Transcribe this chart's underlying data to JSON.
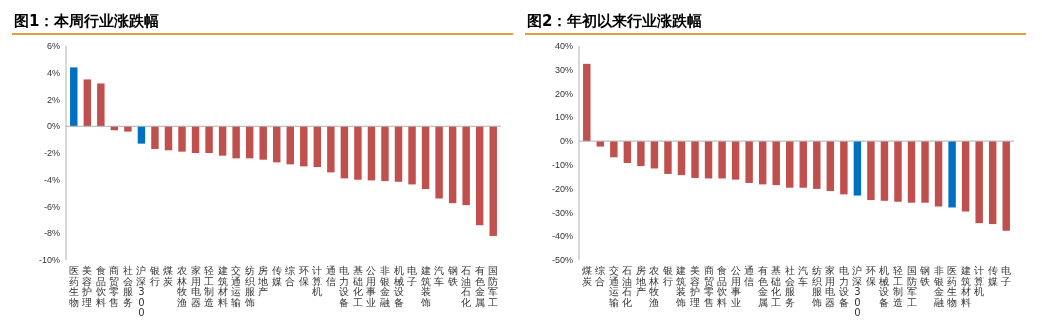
{
  "chart_data": [
    {
      "type": "bar",
      "title": "图1：本周行业涨跌幅",
      "categories": [
        "医药生物",
        "美容护理",
        "食品饮料",
        "商贸零售",
        "社会服务",
        "沪深300",
        "银行",
        "煤炭",
        "农林牧渔",
        "家用电器",
        "轻工制造",
        "建筑材料",
        "交通运输",
        "纺织服饰",
        "房地产",
        "传媒",
        "综合",
        "环保",
        "计算机",
        "通信",
        "电力设备",
        "基础化工",
        "公用事业",
        "非银金融",
        "机械设备",
        "电子",
        "建筑装饰",
        "汽车",
        "钢铁",
        "石油石化",
        "有色金属",
        "国防军工"
      ],
      "values": [
        4.4,
        3.5,
        3.2,
        -0.3,
        -0.4,
        -1.3,
        -1.7,
        -1.8,
        -1.9,
        -2.0,
        -2.0,
        -2.2,
        -2.4,
        -2.4,
        -2.5,
        -2.7,
        -2.85,
        -3.0,
        -3.05,
        -3.45,
        -3.9,
        -4.0,
        -4.05,
        -4.1,
        -4.15,
        -4.35,
        -4.7,
        -5.4,
        -5.75,
        -5.9,
        -7.4,
        -8.2
      ],
      "colors": [
        "#0070c0",
        "#c0504d",
        "#c0504d",
        "#c0504d",
        "#c0504d",
        "#0070c0",
        "#c0504d",
        "#c0504d",
        "#c0504d",
        "#c0504d",
        "#c0504d",
        "#c0504d",
        "#c0504d",
        "#c0504d",
        "#c0504d",
        "#c0504d",
        "#c0504d",
        "#c0504d",
        "#c0504d",
        "#c0504d",
        "#c0504d",
        "#c0504d",
        "#c0504d",
        "#c0504d",
        "#c0504d",
        "#c0504d",
        "#c0504d",
        "#c0504d",
        "#c0504d",
        "#c0504d",
        "#c0504d",
        "#c0504d"
      ],
      "ylim": [
        -10,
        6
      ],
      "yticks": [
        {
          "value": -10,
          "label": "-10%"
        },
        {
          "value": -8,
          "label": "-8%"
        },
        {
          "value": -6,
          "label": "-6%"
        },
        {
          "value": -4,
          "label": "-4%"
        },
        {
          "value": -2,
          "label": "-2%"
        },
        {
          "value": 0,
          "label": "0%"
        },
        {
          "value": 2,
          "label": "2%"
        },
        {
          "value": 4,
          "label": "4%"
        },
        {
          "value": 6,
          "label": "6%"
        }
      ]
    },
    {
      "type": "bar",
      "title": "图2：年初以来行业涨跌幅",
      "categories": [
        "煤炭",
        "综合",
        "交通运输",
        "石油石化",
        "房地产",
        "农林牧渔",
        "银行",
        "建筑装饰",
        "美容护理",
        "商贸零售",
        "食品饮料",
        "公用事业",
        "通信",
        "有色金属",
        "基础化工",
        "社会服务",
        "汽车",
        "纺织服饰",
        "家用电器",
        "电力设备",
        "沪深300",
        "环保",
        "机械设备",
        "轻工制造",
        "国防军工",
        "钢铁",
        "非银金融",
        "医药生物",
        "建筑材料",
        "计算机",
        "传媒",
        "电子"
      ],
      "values": [
        32.5,
        -2.3,
        -6.8,
        -9.2,
        -10.5,
        -11.5,
        -13.8,
        -14.3,
        -15.5,
        -15.7,
        -15.7,
        -16.2,
        -17.6,
        -18.2,
        -18.5,
        -19.6,
        -19.6,
        -20.1,
        -21,
        -22.4,
        -22.9,
        -24.8,
        -25.1,
        -25.5,
        -25.9,
        -25.9,
        -27.5,
        -27.9,
        -29.6,
        -34.5,
        -34.9,
        -37.7
      ],
      "colors": [
        "#c0504d",
        "#c0504d",
        "#c0504d",
        "#c0504d",
        "#c0504d",
        "#c0504d",
        "#c0504d",
        "#c0504d",
        "#c0504d",
        "#c0504d",
        "#c0504d",
        "#c0504d",
        "#c0504d",
        "#c0504d",
        "#c0504d",
        "#c0504d",
        "#c0504d",
        "#c0504d",
        "#c0504d",
        "#c0504d",
        "#0070c0",
        "#c0504d",
        "#c0504d",
        "#c0504d",
        "#c0504d",
        "#c0504d",
        "#c0504d",
        "#0070c0",
        "#c0504d",
        "#c0504d",
        "#c0504d",
        "#c0504d"
      ],
      "ylim": [
        -50,
        40
      ],
      "yticks": [
        {
          "value": -50,
          "label": "-50%"
        },
        {
          "value": -40,
          "label": "-40%"
        },
        {
          "value": -30,
          "label": "-30%"
        },
        {
          "value": -20,
          "label": "-20%"
        },
        {
          "value": -10,
          "label": "-10%"
        },
        {
          "value": 0,
          "label": "0%"
        },
        {
          "value": 10,
          "label": "10%"
        },
        {
          "value": 20,
          "label": "20%"
        },
        {
          "value": 30,
          "label": "30%"
        },
        {
          "value": 40,
          "label": "40%"
        }
      ]
    }
  ]
}
